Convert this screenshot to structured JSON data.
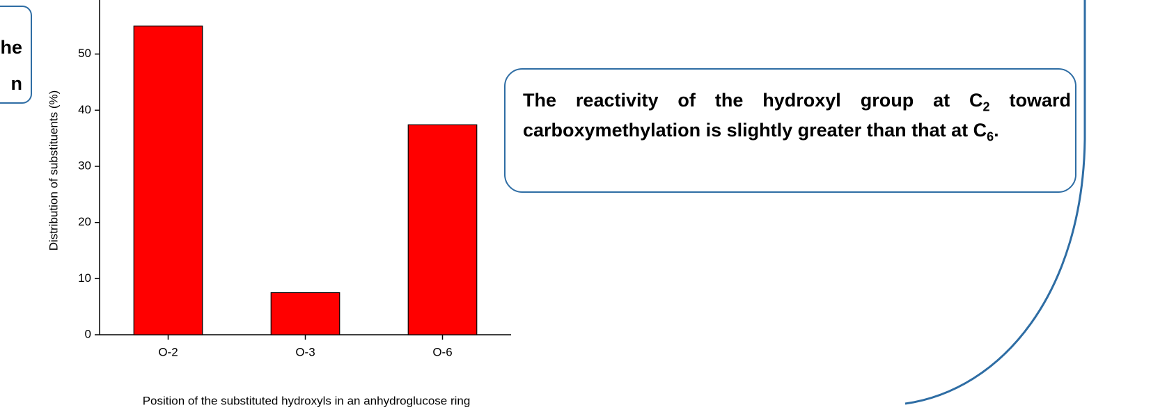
{
  "chart_data": {
    "type": "bar",
    "x_label": "Position of the substituted hydroxyls in an anhydroglucose ring",
    "y_label": "Distribution of substituents (%)",
    "categories": [
      "O-2",
      "O-3",
      "O-6"
    ],
    "values": [
      55,
      7.5,
      37.4
    ],
    "color": "#ff0000",
    "ylim": [
      0,
      60
    ],
    "yticks": [
      0,
      10,
      20,
      30,
      40,
      50
    ]
  },
  "left_box": {
    "lines": [
      "he",
      "n"
    ]
  },
  "note": {
    "text1": "The reactivity of the hydroxyl group at C",
    "sub1": "2",
    "text2": " toward carboxymethylation is slightly greater than that at C",
    "sub2": "6",
    "text3": "."
  }
}
